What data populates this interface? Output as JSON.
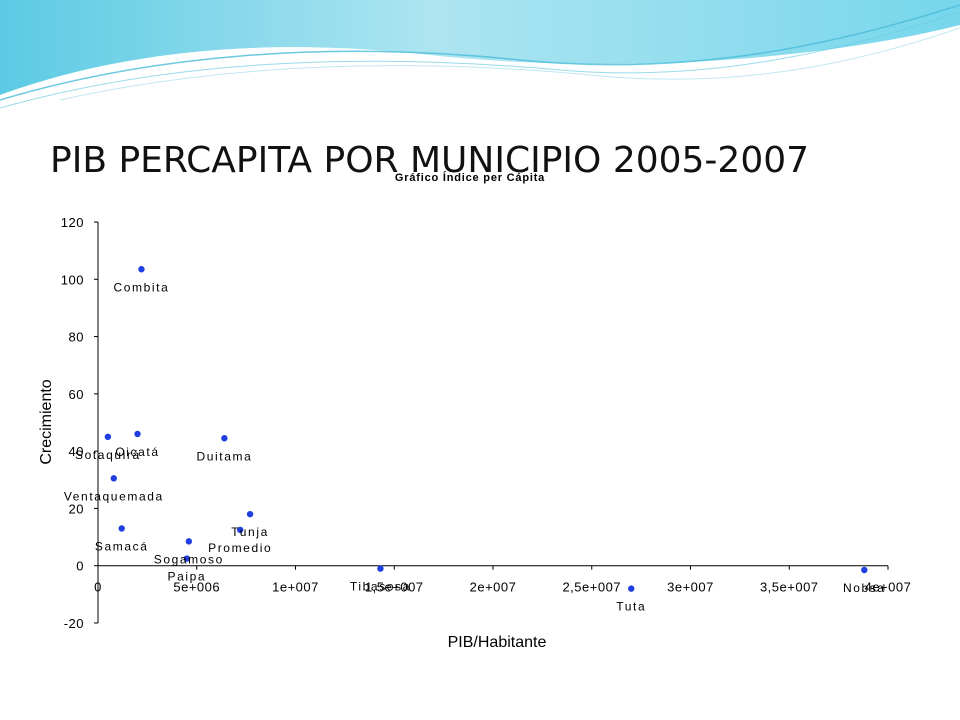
{
  "slide": {
    "title": "PIB PERCAPITA POR MUNICIPIO 2005-2007",
    "decoration_colors": [
      "#2bb3d9",
      "#8fdcec",
      "#d9f3f9"
    ]
  },
  "chart_data": {
    "type": "scatter",
    "title": "Gráfico Índice per Cápita",
    "xlabel": "PIB/Habitante",
    "ylabel": "Crecimiento",
    "xlim": [
      0,
      40000000
    ],
    "ylim": [
      -20,
      120
    ],
    "xticks": [
      0,
      5000000,
      10000000,
      15000000,
      20000000,
      25000000,
      30000000,
      35000000,
      40000000
    ],
    "xtick_labels": [
      "0",
      "5e+006",
      "1e+007",
      "1,5e+007",
      "2e+007",
      "2,5e+007",
      "3e+007",
      "3,5e+007",
      "4e+007"
    ],
    "yticks": [
      -20,
      0,
      20,
      40,
      60,
      80,
      100,
      120
    ],
    "ytick_labels": [
      "-20",
      "0",
      "20",
      "40",
      "60",
      "80",
      "100",
      "120"
    ],
    "grid": false,
    "marker_color": "#1f3fe0",
    "points": [
      {
        "label": "Combita",
        "x": 2200000,
        "y": 103.5
      },
      {
        "label": "Sotaquirá",
        "x": 500000,
        "y": 45
      },
      {
        "label": "Oicatá",
        "x": 2000000,
        "y": 46
      },
      {
        "label": "Duitama",
        "x": 6400000,
        "y": 44.5
      },
      {
        "label": "Ventaquemada",
        "x": 800000,
        "y": 30.5
      },
      {
        "label": "Samacá",
        "x": 1200000,
        "y": 13
      },
      {
        "label": "Tunja",
        "x": 7700000,
        "y": 18
      },
      {
        "label": "Promedio",
        "x": 7200000,
        "y": 12.5
      },
      {
        "label": "Sogamoso",
        "x": 4600000,
        "y": 8.5
      },
      {
        "label": "Paipa",
        "x": 4500000,
        "y": 2.5
      },
      {
        "label": "Tibasosa",
        "x": 14300000,
        "y": -1
      },
      {
        "label": "Tuta",
        "x": 27000000,
        "y": -8
      },
      {
        "label": "Nobsa",
        "x": 38800000,
        "y": -1.5
      }
    ]
  }
}
